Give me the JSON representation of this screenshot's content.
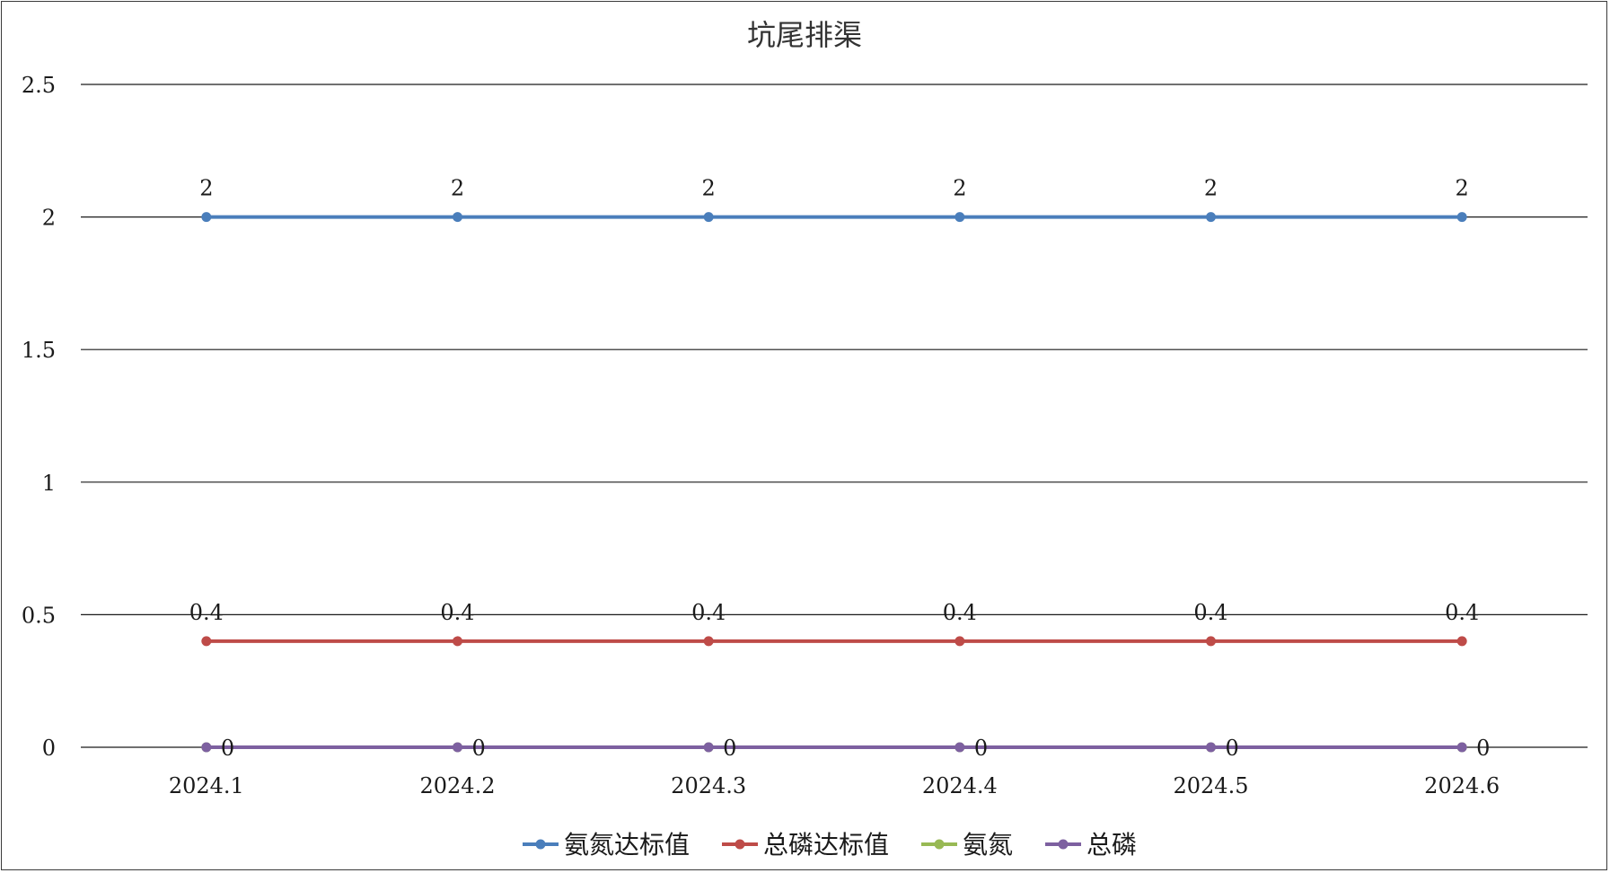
{
  "chart_data": {
    "type": "line",
    "title": "坑尾排渠",
    "categories": [
      "2024.1",
      "2024.2",
      "2024.3",
      "2024.4",
      "2024.5",
      "2024.6"
    ],
    "ylim": [
      0,
      2.5
    ],
    "yticks": [
      0,
      0.5,
      1,
      1.5,
      2,
      2.5
    ],
    "ytick_labels": [
      "0",
      "0.5",
      "1",
      "1.5",
      "2",
      "2.5"
    ],
    "grid": true,
    "legend_position": "bottom",
    "series": [
      {
        "name": "氨氮达标值",
        "color": "#4a7ebb",
        "values": [
          2,
          2,
          2,
          2,
          2,
          2
        ],
        "labels": [
          "2",
          "2",
          "2",
          "2",
          "2",
          "2"
        ],
        "label_position": "above"
      },
      {
        "name": "总磷达标值",
        "color": "#be4b48",
        "values": [
          0.4,
          0.4,
          0.4,
          0.4,
          0.4,
          0.4
        ],
        "labels": [
          "0.4",
          "0.4",
          "0.4",
          "0.4",
          "0.4",
          "0.4"
        ],
        "label_position": "above"
      },
      {
        "name": "氨氮",
        "color": "#98b954",
        "values": [
          0,
          0,
          0,
          0,
          0,
          0
        ],
        "labels": [],
        "label_position": "none"
      },
      {
        "name": "总磷",
        "color": "#7d60a0",
        "values": [
          0,
          0,
          0,
          0,
          0,
          0
        ],
        "labels": [
          "0",
          "0",
          "0",
          "0",
          "0",
          "0"
        ],
        "label_position": "right"
      }
    ]
  }
}
